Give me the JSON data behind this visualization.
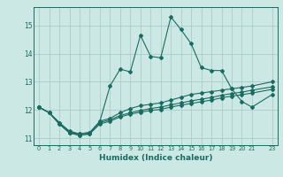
{
  "xlabel": "Humidex (Indice chaleur)",
  "bg_color": "#cce8e4",
  "grid_color": "#aaccc8",
  "line_color": "#1a6b60",
  "xlim": [
    -0.5,
    23.5
  ],
  "ylim": [
    10.75,
    15.65
  ],
  "yticks": [
    11,
    12,
    13,
    14,
    15
  ],
  "xtick_positions": [
    0,
    1,
    2,
    3,
    4,
    5,
    6,
    7,
    8,
    9,
    10,
    11,
    12,
    13,
    14,
    15,
    16,
    17,
    18,
    19,
    20,
    21,
    23
  ],
  "xtick_labels": [
    "0",
    "1",
    "2",
    "3",
    "4",
    "5",
    "6",
    "7",
    "8",
    "9",
    "10",
    "11",
    "12",
    "13",
    "14",
    "15",
    "16",
    "17",
    "18",
    "19",
    "20",
    "21",
    "23"
  ],
  "x_values": [
    0,
    1,
    2,
    3,
    4,
    5,
    6,
    7,
    8,
    9,
    10,
    11,
    12,
    13,
    14,
    15,
    16,
    17,
    18,
    19,
    20,
    21,
    23
  ],
  "lines": [
    [
      12.1,
      11.9,
      11.55,
      11.2,
      11.1,
      11.15,
      11.6,
      12.85,
      13.45,
      13.35,
      14.65,
      13.9,
      13.85,
      15.3,
      14.85,
      14.35,
      13.5,
      13.4,
      13.4,
      12.75,
      12.3,
      12.1,
      12.55
    ],
    [
      12.1,
      11.9,
      11.55,
      11.25,
      11.15,
      11.2,
      11.6,
      11.7,
      11.9,
      12.05,
      12.15,
      12.2,
      12.25,
      12.35,
      12.45,
      12.55,
      12.6,
      12.65,
      12.7,
      12.75,
      12.8,
      12.85,
      13.0
    ],
    [
      12.1,
      11.9,
      11.5,
      11.2,
      11.15,
      11.2,
      11.55,
      11.65,
      11.8,
      11.9,
      11.98,
      12.05,
      12.1,
      12.18,
      12.25,
      12.32,
      12.38,
      12.44,
      12.52,
      12.58,
      12.63,
      12.7,
      12.82
    ],
    [
      12.1,
      11.9,
      11.5,
      11.18,
      11.1,
      11.15,
      11.5,
      11.6,
      11.75,
      11.85,
      11.92,
      11.98,
      12.02,
      12.1,
      12.17,
      12.23,
      12.29,
      12.35,
      12.43,
      12.49,
      12.54,
      12.6,
      12.73
    ]
  ]
}
